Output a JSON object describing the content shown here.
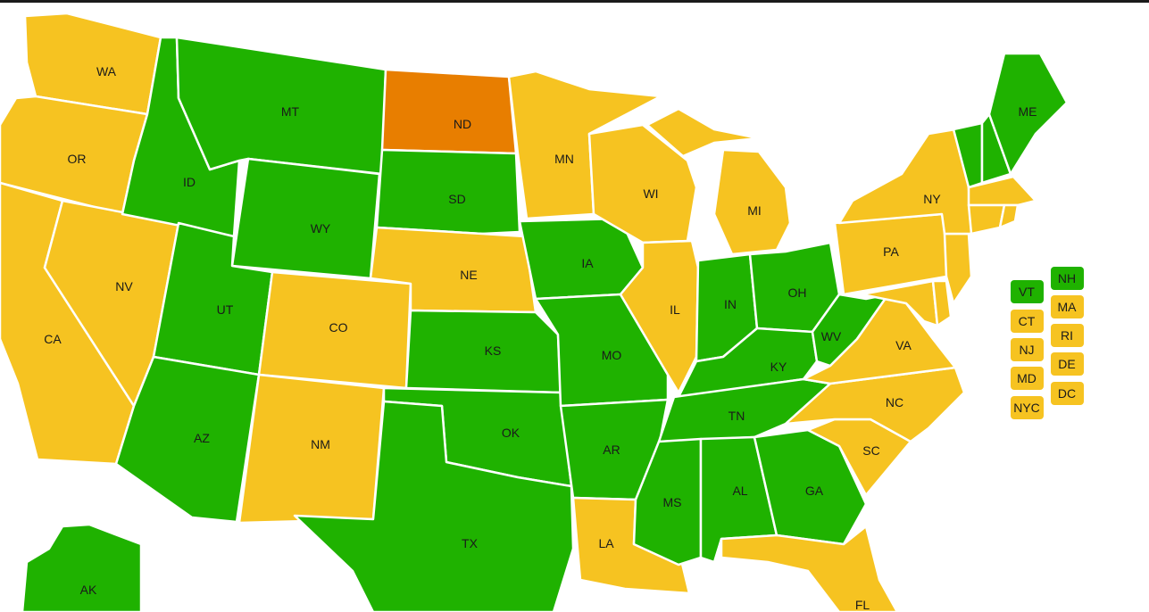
{
  "colors": {
    "green": "#1fb200",
    "yellow": "#f6c321",
    "orange": "#e87e00"
  },
  "states": {
    "WA": {
      "label": "WA",
      "status": "yellow"
    },
    "OR": {
      "label": "OR",
      "status": "yellow"
    },
    "CA": {
      "label": "CA",
      "status": "yellow"
    },
    "NV": {
      "label": "NV",
      "status": "yellow"
    },
    "ID": {
      "label": "ID",
      "status": "green"
    },
    "MT": {
      "label": "MT",
      "status": "green"
    },
    "WY": {
      "label": "WY",
      "status": "green"
    },
    "UT": {
      "label": "UT",
      "status": "green"
    },
    "AZ": {
      "label": "AZ",
      "status": "green"
    },
    "CO": {
      "label": "CO",
      "status": "yellow"
    },
    "NM": {
      "label": "NM",
      "status": "yellow"
    },
    "ND": {
      "label": "ND",
      "status": "orange"
    },
    "SD": {
      "label": "SD",
      "status": "green"
    },
    "NE": {
      "label": "NE",
      "status": "yellow"
    },
    "KS": {
      "label": "KS",
      "status": "green"
    },
    "OK": {
      "label": "OK",
      "status": "green"
    },
    "TX": {
      "label": "TX",
      "status": "green"
    },
    "MN": {
      "label": "MN",
      "status": "yellow"
    },
    "IA": {
      "label": "IA",
      "status": "green"
    },
    "MO": {
      "label": "MO",
      "status": "green"
    },
    "AR": {
      "label": "AR",
      "status": "green"
    },
    "LA": {
      "label": "LA",
      "status": "yellow"
    },
    "WI": {
      "label": "WI",
      "status": "yellow"
    },
    "IL": {
      "label": "IL",
      "status": "yellow"
    },
    "MI": {
      "label": "MI",
      "status": "yellow"
    },
    "IN": {
      "label": "IN",
      "status": "green"
    },
    "OH": {
      "label": "OH",
      "status": "green"
    },
    "KY": {
      "label": "KY",
      "status": "green"
    },
    "TN": {
      "label": "TN",
      "status": "green"
    },
    "MS": {
      "label": "MS",
      "status": "green"
    },
    "AL": {
      "label": "AL",
      "status": "green"
    },
    "GA": {
      "label": "GA",
      "status": "green"
    },
    "FL": {
      "label": "FL",
      "status": "yellow"
    },
    "SC": {
      "label": "SC",
      "status": "yellow"
    },
    "NC": {
      "label": "NC",
      "status": "yellow"
    },
    "VA": {
      "label": "VA",
      "status": "yellow"
    },
    "WV": {
      "label": "WV",
      "status": "green"
    },
    "PA": {
      "label": "PA",
      "status": "yellow"
    },
    "NY": {
      "label": "NY",
      "status": "yellow"
    },
    "ME": {
      "label": "ME",
      "status": "green"
    },
    "AK": {
      "label": "AK",
      "status": "green"
    },
    "NJ_shape": {
      "status": "yellow"
    },
    "DE_shape": {
      "status": "yellow"
    },
    "MD_shape": {
      "status": "yellow"
    },
    "VT_shape": {
      "status": "green"
    },
    "NH_shape": {
      "status": "green"
    },
    "MA_shape": {
      "status": "yellow"
    },
    "CT_shape": {
      "status": "yellow"
    },
    "RI_shape": {
      "status": "yellow"
    }
  },
  "small_states": [
    {
      "label": "VT",
      "status": "green"
    },
    {
      "label": "NH",
      "status": "green"
    },
    {
      "label": "CT",
      "status": "yellow"
    },
    {
      "label": "MA",
      "status": "yellow"
    },
    {
      "label": "NJ",
      "status": "yellow"
    },
    {
      "label": "RI",
      "status": "yellow"
    },
    {
      "label": "MD",
      "status": "yellow"
    },
    {
      "label": "DE",
      "status": "yellow"
    },
    {
      "label": "NYC",
      "status": "yellow"
    },
    {
      "label": "DC",
      "status": "yellow"
    }
  ]
}
